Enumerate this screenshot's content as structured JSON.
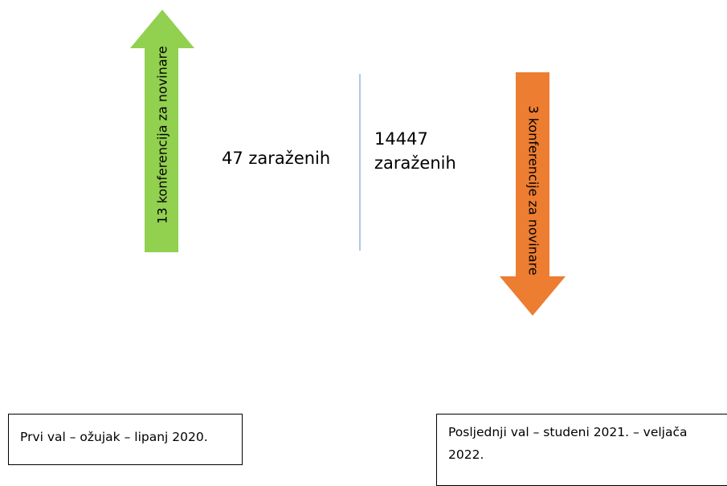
{
  "arrows": [
    {
      "label": "13 konferencija za novinare",
      "color": "#92d050",
      "direction": "up"
    },
    {
      "label": "3 konferencije za novinare",
      "color": "#ed7d31",
      "direction": "down"
    }
  ],
  "counts": [
    {
      "lines": [
        "47 zaraženih"
      ]
    },
    {
      "lines": [
        "14447",
        "zaraženih"
      ]
    }
  ],
  "periods": [
    {
      "text": "Prvi val – ožujak – lipanj 2020."
    },
    {
      "text": "Posljednji val – studeni 2021. – veljača 2022."
    }
  ]
}
